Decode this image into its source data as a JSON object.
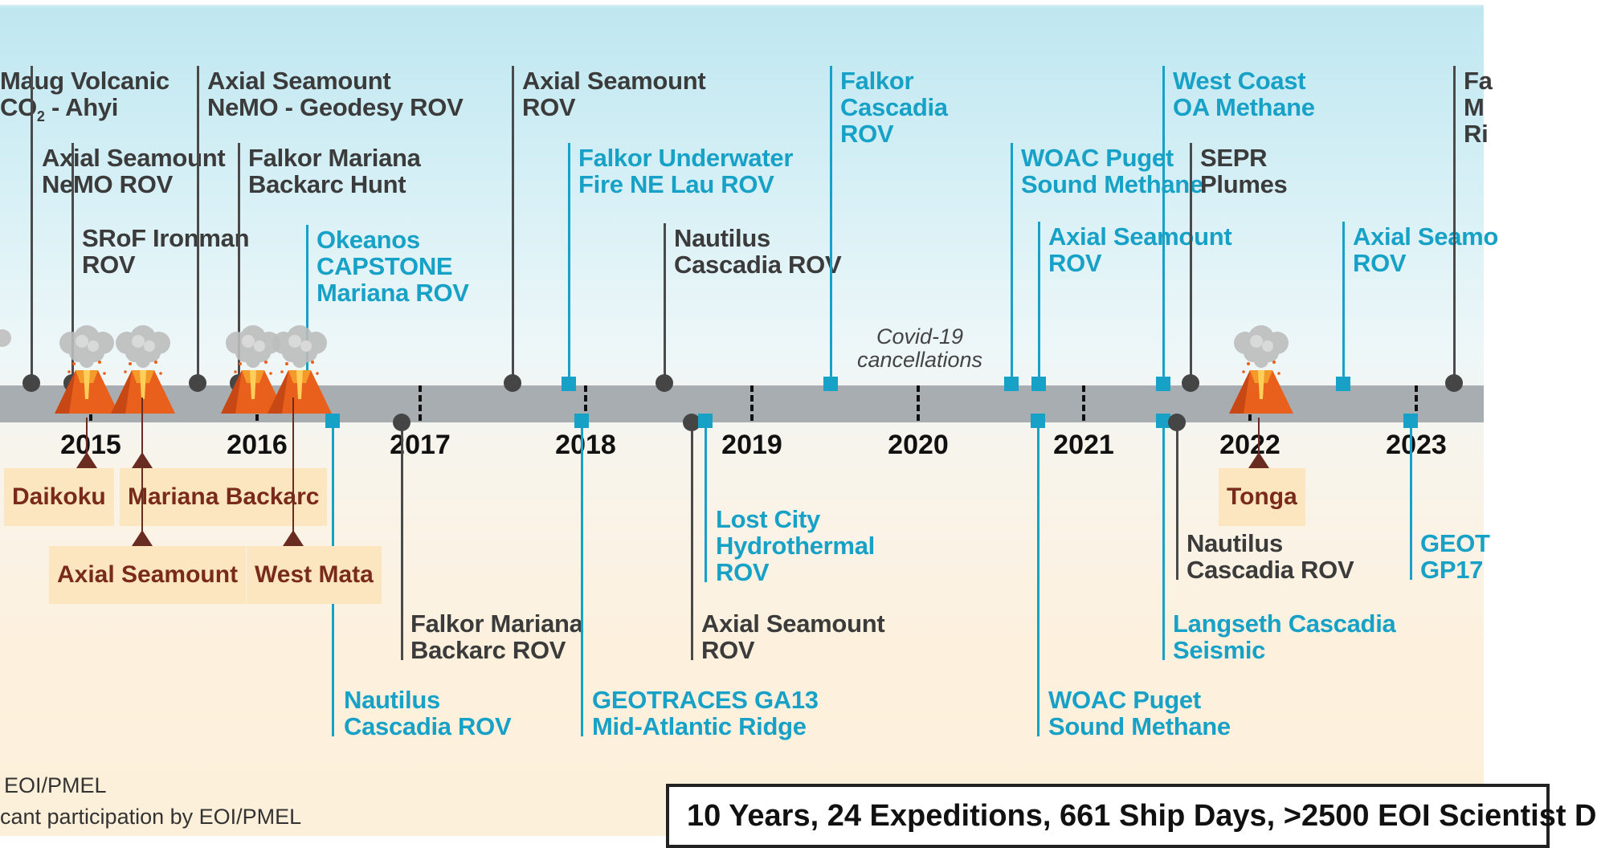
{
  "colors": {
    "ship_led": "#3b3b3b",
    "other_led": "#18a1c7",
    "eruption": "#7a2a1a",
    "eruption_bg": "#fbe6c0",
    "axis": "#a8adb1"
  },
  "years": [
    "2015",
    "2016",
    "2017",
    "2018",
    "2019",
    "2020",
    "2021",
    "2022",
    "2023"
  ],
  "covid_note": [
    "Covid-19",
    "cancellations"
  ],
  "events_above": [
    {
      "lines": [
        "Maug Volcanic",
        "CO",
        "- Ahyi"
      ],
      "style": "dark"
    },
    {
      "lines": [
        "Axial Seamount",
        "NeMO ROV"
      ],
      "style": "dark"
    },
    {
      "lines": [
        "SRoF Ironman",
        "ROV"
      ],
      "style": "dark"
    },
    {
      "lines": [
        "Axial Seamount",
        "NeMO - Geodesy ROV"
      ],
      "style": "dark"
    },
    {
      "lines": [
        "Falkor Mariana",
        "Backarc Hunt"
      ],
      "style": "dark"
    },
    {
      "lines": [
        "Okeanos",
        "CAPSTONE",
        "Mariana ROV"
      ],
      "style": "blue"
    },
    {
      "lines": [
        "Axial Seamount",
        "ROV"
      ],
      "style": "dark"
    },
    {
      "lines": [
        "Falkor Underwater",
        "Fire NE Lau ROV"
      ],
      "style": "blue"
    },
    {
      "lines": [
        "Nautilus",
        "Cascadia ROV"
      ],
      "style": "dark"
    },
    {
      "lines": [
        "Falkor",
        "Cascadia",
        "ROV"
      ],
      "style": "blue"
    },
    {
      "lines": [
        "WOAC Puget",
        "Sound Methane"
      ],
      "style": "blue"
    },
    {
      "lines": [
        "Axial Seamount",
        "ROV"
      ],
      "style": "blue"
    },
    {
      "lines": [
        "West Coast",
        "OA Methane"
      ],
      "style": "blue"
    },
    {
      "lines": [
        "SEPR",
        "Plumes"
      ],
      "style": "dark"
    },
    {
      "lines": [
        "Axial Seamo",
        "ROV"
      ],
      "style": "blue"
    },
    {
      "lines": [
        "Fa",
        "M",
        "Ri"
      ],
      "style": "dark"
    }
  ],
  "events_below": [
    {
      "lines": [
        "Nautilus",
        "Cascadia ROV"
      ],
      "style": "blue"
    },
    {
      "lines": [
        "Falkor Mariana",
        "Backarc ROV"
      ],
      "style": "dark"
    },
    {
      "lines": [
        "GEOTRACES GA13",
        "Mid-Atlantic Ridge"
      ],
      "style": "blue"
    },
    {
      "lines": [
        "Axial Seamount",
        "ROV"
      ],
      "style": "dark"
    },
    {
      "lines": [
        "Lost City",
        "Hydrothermal",
        "ROV"
      ],
      "style": "blue"
    },
    {
      "lines": [
        "WOAC Puget",
        "Sound Methane"
      ],
      "style": "blue"
    },
    {
      "lines": [
        "Langseth Cascadia",
        "Seismic"
      ],
      "style": "blue"
    },
    {
      "lines": [
        "Nautilus",
        "Cascadia ROV"
      ],
      "style": "dark"
    },
    {
      "lines": [
        "GEOT",
        "GP17"
      ],
      "style": "blue"
    }
  ],
  "eruptions": [
    "Daikoku",
    "Mariana Backarc",
    "Axial Seamount",
    "West Mata",
    "Tonga"
  ],
  "co2_subscript": "2",
  "legend": {
    "ship": "EOI/PMEL",
    "other": "cant participation by EOI/PMEL"
  },
  "summary": "10 Years, 24 Expeditions, 661 Ship Days, >2500 EOI Scientist D"
}
